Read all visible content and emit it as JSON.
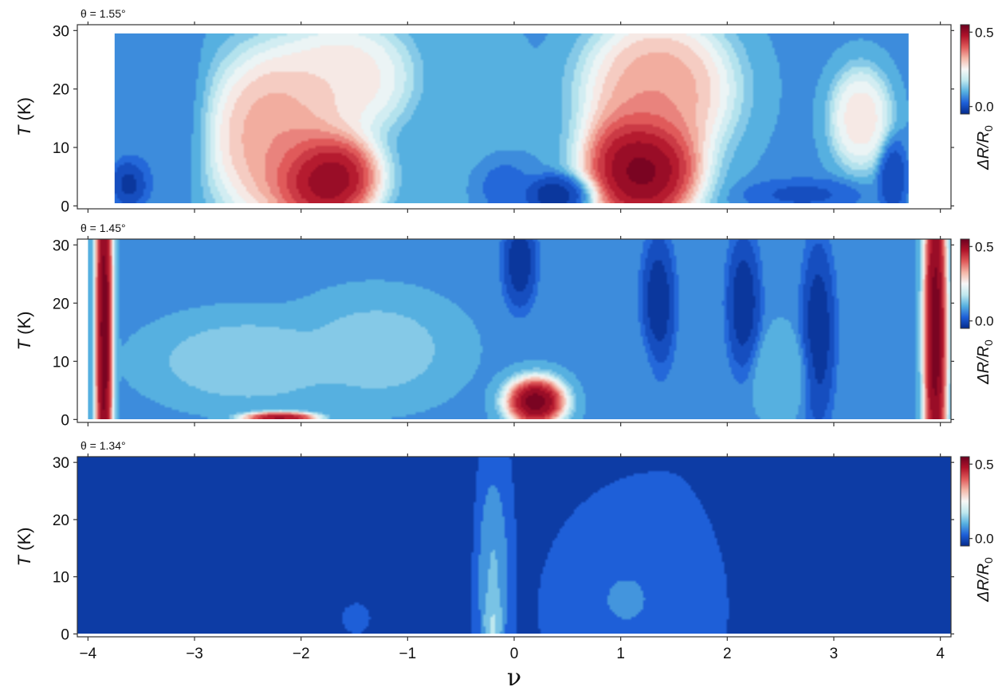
{
  "figure": {
    "xlabel": "ν",
    "ylabel_main": "T",
    "ylabel_unit": " (K)",
    "cblabel_main": "ΔR/R",
    "cblabel_sub": "0",
    "xticks": [
      -4,
      -3,
      -2,
      -1,
      0,
      1,
      2,
      3,
      4
    ],
    "xtick_labels": [
      "−4",
      "−3",
      "−2",
      "−1",
      "0",
      "1",
      "2",
      "3",
      "4"
    ],
    "yticks": [
      0,
      10,
      20,
      30
    ],
    "ytick_labels": [
      "0",
      "10",
      "20",
      "30"
    ],
    "cbticks": [
      0.0,
      0.5
    ],
    "cbtick_labels": [
      "0.0",
      "0.5"
    ]
  },
  "colorscale": {
    "name": "blue-white-red diverging",
    "min": -0.05,
    "max": 0.55,
    "stops": [
      "#052b8c",
      "#1e5fd8",
      "#56b0e0",
      "#bfe8ef",
      "#f7f7f7",
      "#f4b7a8",
      "#e05a5a",
      "#b0132a",
      "#6b0020"
    ]
  },
  "chart_data": [
    {
      "type": "heatmap",
      "title": "θ = 1.55°",
      "xlabel": "",
      "ylabel": "T (K)",
      "xlim": [
        -4.1,
        4.1
      ],
      "ylim": [
        -0.5,
        31
      ],
      "data_xrange": [
        -3.75,
        3.7
      ],
      "data_yrange": [
        0.5,
        29.5
      ],
      "colorbar_label": "ΔR/R0",
      "colorbar_range": [
        -0.05,
        0.55
      ],
      "features": [
        {
          "x": -3.6,
          "y": 4,
          "sx": 0.13,
          "sy": 3,
          "value": -0.05
        },
        {
          "x": -3.3,
          "y": 15,
          "sx": 0.3,
          "sy": 13,
          "value": 0.05
        },
        {
          "x": -2.2,
          "y": 12,
          "sx": 0.5,
          "sy": 11,
          "value": 0.38
        },
        {
          "x": -1.8,
          "y": 5,
          "sx": 0.38,
          "sy": 6,
          "value": 0.6
        },
        {
          "x": -1.6,
          "y": 22,
          "sx": 0.45,
          "sy": 7,
          "value": 0.3
        },
        {
          "x": -0.35,
          "y": 14,
          "sx": 0.35,
          "sy": 13,
          "value": 0.1
        },
        {
          "x": -0.15,
          "y": 4,
          "sx": 0.2,
          "sy": 4,
          "value": 0.0
        },
        {
          "x": 0.4,
          "y": 2,
          "sx": 0.25,
          "sy": 2.5,
          "value": -0.05
        },
        {
          "x": 1.2,
          "y": 7,
          "sx": 0.4,
          "sy": 8,
          "value": 0.6
        },
        {
          "x": 1.35,
          "y": 20,
          "sx": 0.5,
          "sy": 9,
          "value": 0.38
        },
        {
          "x": 2.7,
          "y": 2,
          "sx": 0.4,
          "sy": 2,
          "value": 0.0
        },
        {
          "x": 3.25,
          "y": 15,
          "sx": 0.2,
          "sy": 6,
          "value": 0.3
        },
        {
          "x": 3.55,
          "y": 5,
          "sx": 0.1,
          "sy": 5,
          "value": -0.02
        }
      ]
    },
    {
      "type": "heatmap",
      "title": "θ = 1.45°",
      "xlabel": "",
      "ylabel": "T (K)",
      "xlim": [
        -4.1,
        4.1
      ],
      "ylim": [
        -0.5,
        31
      ],
      "data_xrange": [
        -4.0,
        4.1
      ],
      "data_yrange": [
        0,
        31
      ],
      "colorbar_label": "ΔR/R0",
      "colorbar_range": [
        -0.05,
        0.55
      ],
      "features": [
        {
          "x": -3.85,
          "y": 15,
          "sx": 0.06,
          "sy": 30,
          "value": 0.6
        },
        {
          "x": -2.5,
          "y": 10,
          "sx": 0.6,
          "sy": 5,
          "value": 0.15
        },
        {
          "x": -1.3,
          "y": 12,
          "sx": 0.5,
          "sy": 6,
          "value": 0.14
        },
        {
          "x": -2.2,
          "y": 0.3,
          "sx": 0.25,
          "sy": 0.7,
          "value": 0.55
        },
        {
          "x": 0.2,
          "y": 3,
          "sx": 0.2,
          "sy": 3,
          "value": 0.6
        },
        {
          "x": 0.05,
          "y": 27,
          "sx": 0.12,
          "sy": 6,
          "value": -0.05
        },
        {
          "x": 1.35,
          "y": 20,
          "sx": 0.12,
          "sy": 9,
          "value": -0.05
        },
        {
          "x": 2.15,
          "y": 20,
          "sx": 0.12,
          "sy": 9,
          "value": -0.05
        },
        {
          "x": 2.85,
          "y": 15,
          "sx": 0.12,
          "sy": 12,
          "value": -0.05
        },
        {
          "x": 1.0,
          "y": 8,
          "sx": 0.25,
          "sy": 6,
          "value": 0.08
        },
        {
          "x": 2.5,
          "y": 8,
          "sx": 0.2,
          "sy": 5,
          "value": 0.12
        },
        {
          "x": 3.95,
          "y": 15,
          "sx": 0.08,
          "sy": 25,
          "value": 0.6
        }
      ]
    },
    {
      "type": "heatmap",
      "title": "θ = 1.34°",
      "xlabel": "ν",
      "ylabel": "T (K)",
      "xlim": [
        -4.1,
        4.1
      ],
      "ylim": [
        -0.5,
        31
      ],
      "data_xrange": [
        -4.1,
        4.1
      ],
      "data_yrange": [
        0,
        31
      ],
      "colorbar_label": "ΔR/R0",
      "colorbar_range": [
        -0.05,
        0.55
      ],
      "features": [
        {
          "x": -2.5,
          "y": 15,
          "sx": 1.2,
          "sy": 18,
          "value": -0.05
        },
        {
          "x": 3.6,
          "y": 15,
          "sx": 0.6,
          "sy": 18,
          "value": -0.05
        },
        {
          "x": -0.2,
          "y": 10,
          "sx": 0.1,
          "sy": 12,
          "value": 0.12
        },
        {
          "x": -0.2,
          "y": 2,
          "sx": 0.06,
          "sy": 4,
          "value": 0.2
        },
        {
          "x": 1.05,
          "y": 6,
          "sx": 0.35,
          "sy": 7,
          "value": 0.06
        },
        {
          "x": -1.5,
          "y": 3,
          "sx": 0.15,
          "sy": 3,
          "value": 0.03
        }
      ]
    }
  ]
}
